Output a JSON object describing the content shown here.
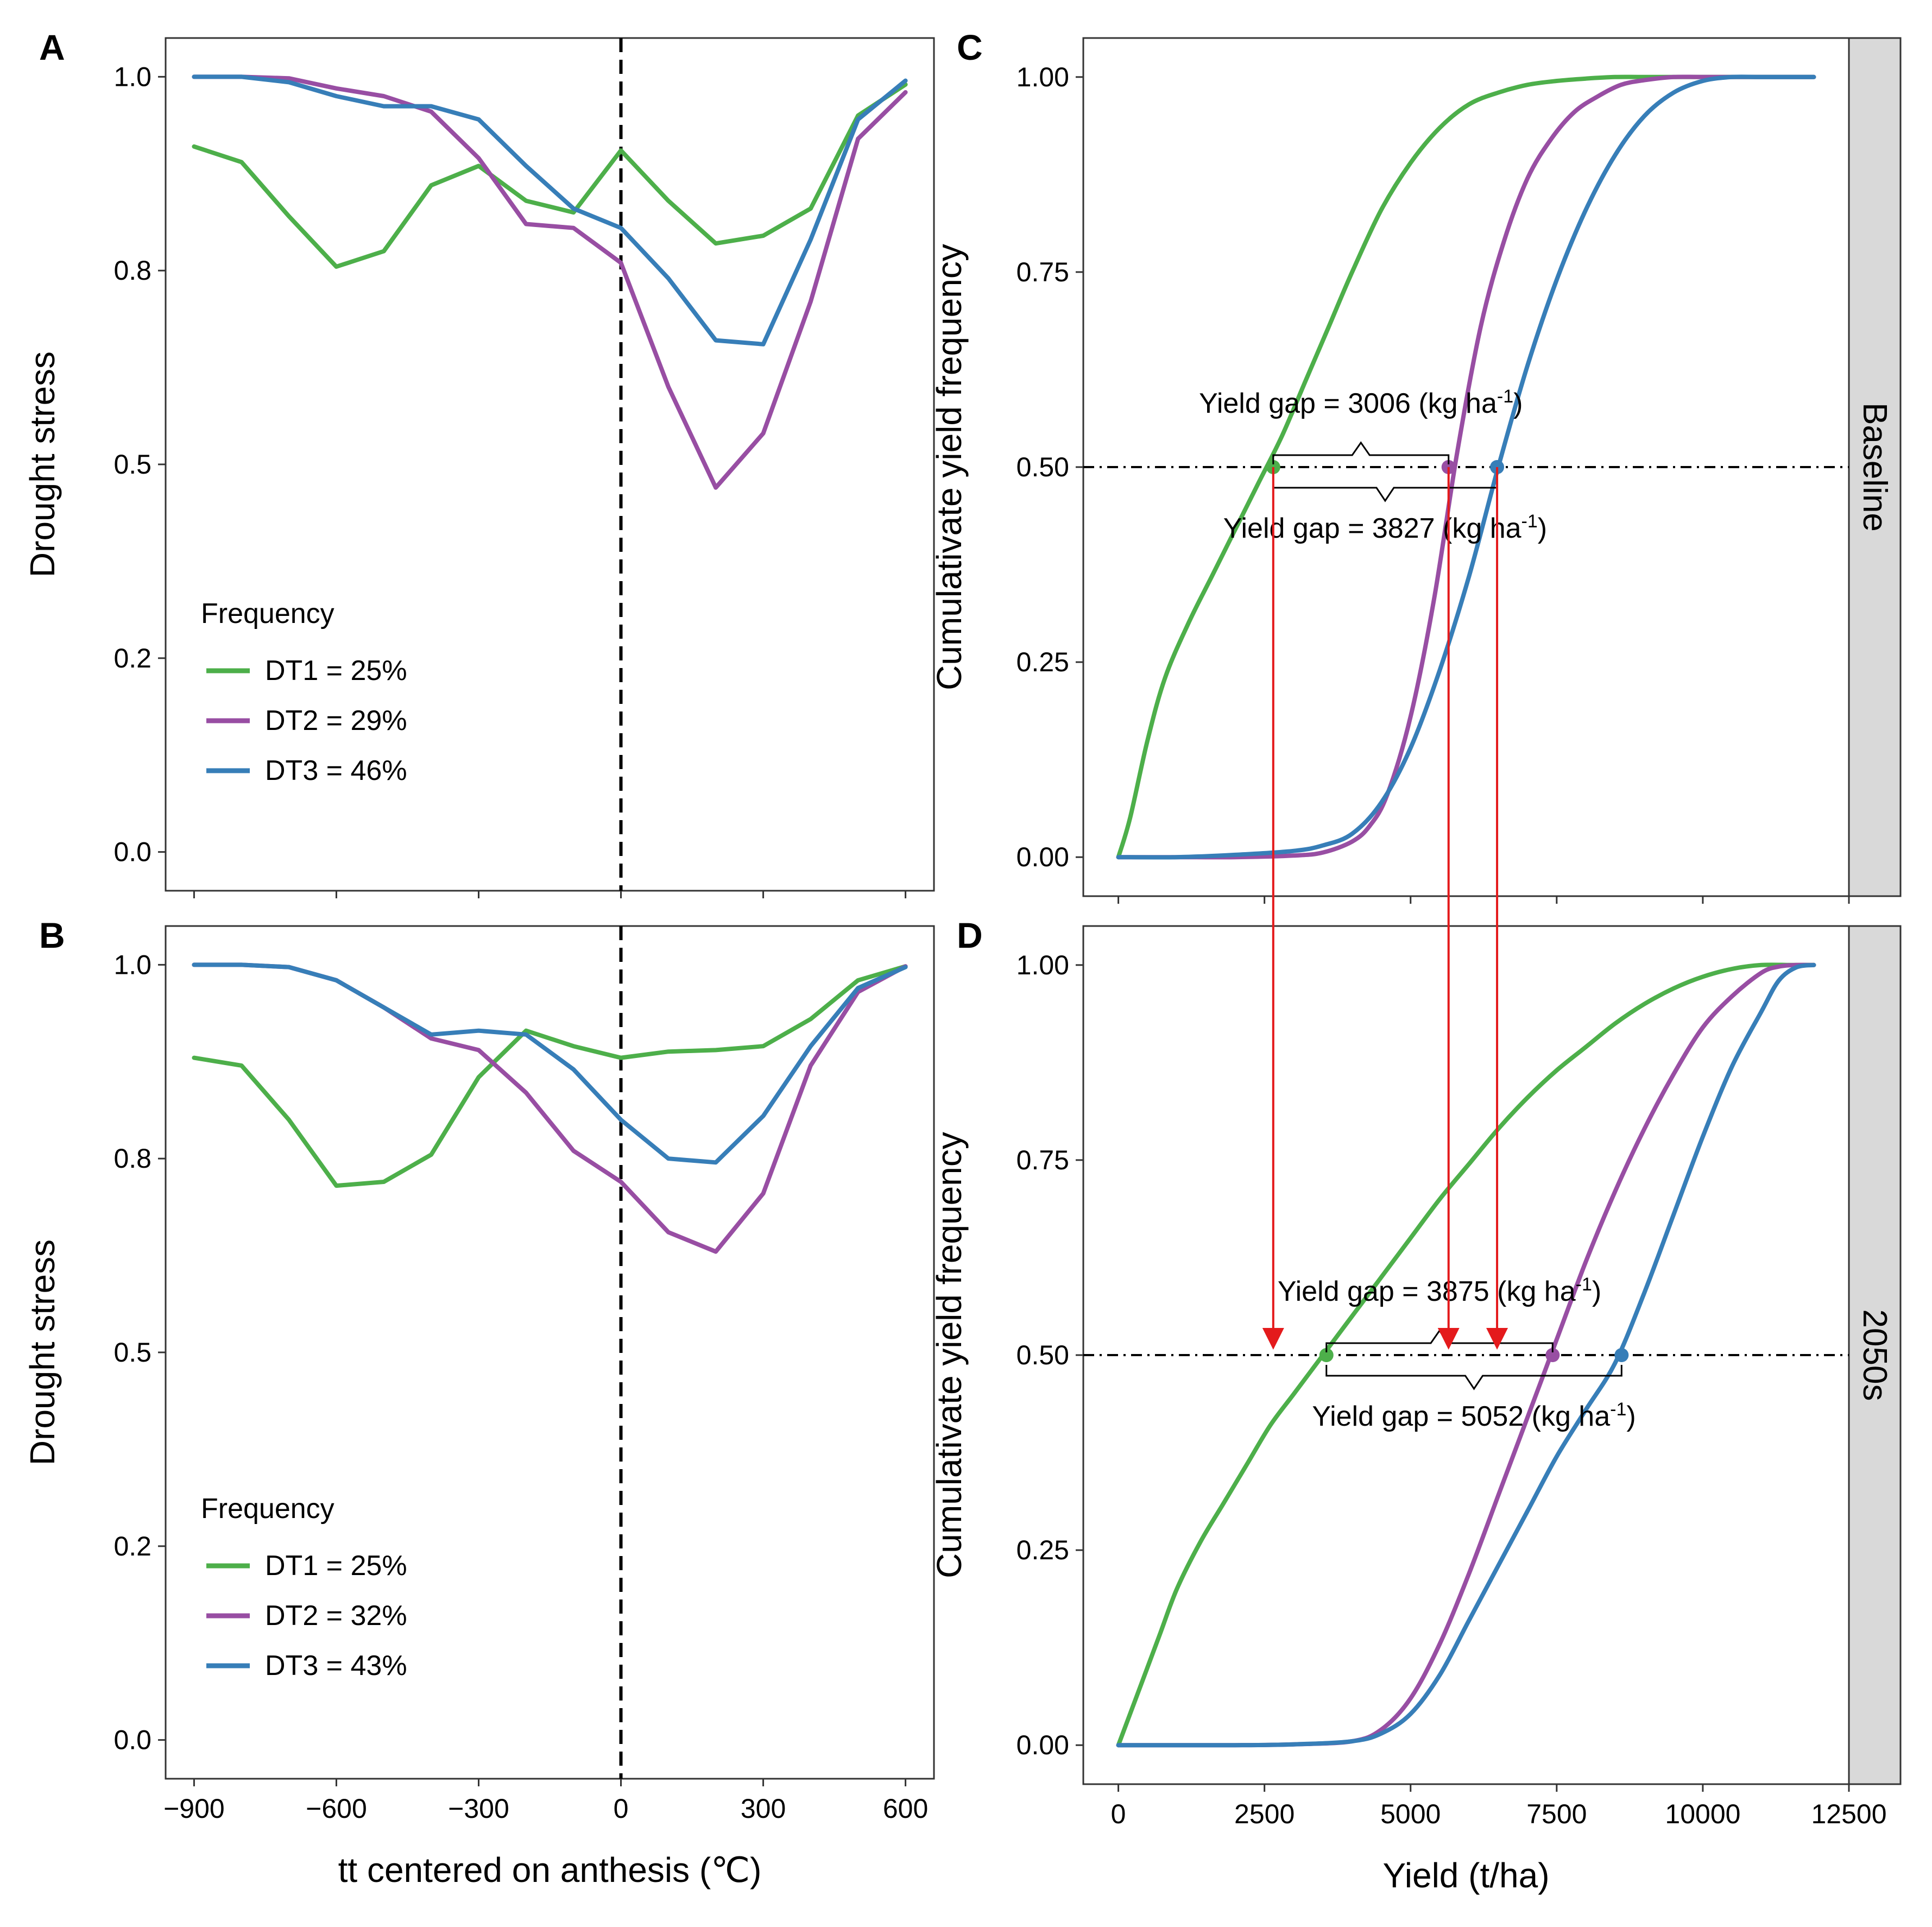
{
  "figure": {
    "colors": {
      "DT1": "#4daf4a",
      "DT2": "#984ea3",
      "DT3": "#377eb8",
      "arrow": "#e41a1c",
      "strip_fill": "#d9d9d9"
    }
  },
  "chart_data": [
    {
      "id": "A",
      "panel_letter": "A",
      "type": "line",
      "ylabel": "Drought  stress",
      "xlabel": "",
      "xlim": [
        -960,
        660
      ],
      "ylim": [
        -0.05,
        1.05
      ],
      "x_ticks": [
        -900,
        -600,
        -300,
        0,
        300,
        600
      ],
      "x_tick_labels": [
        "",
        "",
        "",
        "",
        "",
        ""
      ],
      "y_ticks": [
        0.0,
        0.25,
        0.5,
        0.75,
        1.0
      ],
      "y_tick_labels": [
        "0.0",
        "0.2",
        "0.5",
        "0.8",
        "1.0"
      ],
      "vline_x": 0,
      "legend": {
        "title": "Frequency",
        "position": "bottom-left"
      },
      "x": [
        -900,
        -800,
        -700,
        -600,
        -500,
        -400,
        -300,
        -200,
        -100,
        0,
        100,
        200,
        300,
        400,
        500,
        600
      ],
      "series": [
        {
          "name": "DT1",
          "label": "DT1 = 25%",
          "values": [
            0.91,
            0.89,
            0.82,
            0.755,
            0.775,
            0.86,
            0.885,
            0.84,
            0.825,
            0.905,
            0.84,
            0.785,
            0.795,
            0.83,
            0.95,
            0.99
          ]
        },
        {
          "name": "DT2",
          "label": "DT2 = 29%",
          "values": [
            1.0,
            1.0,
            0.998,
            0.985,
            0.975,
            0.955,
            0.895,
            0.81,
            0.805,
            0.76,
            0.6,
            0.47,
            0.54,
            0.71,
            0.92,
            0.98
          ]
        },
        {
          "name": "DT3",
          "label": "DT3 = 46%",
          "values": [
            1.0,
            1.0,
            0.993,
            0.975,
            0.962,
            0.962,
            0.945,
            0.885,
            0.83,
            0.805,
            0.74,
            0.66,
            0.655,
            0.79,
            0.945,
            0.995
          ]
        }
      ]
    },
    {
      "id": "B",
      "panel_letter": "B",
      "type": "line",
      "ylabel": "Drought stress",
      "xlabel": "tt centered on anthesis (℃)",
      "xlim": [
        -960,
        660
      ],
      "ylim": [
        -0.05,
        1.05
      ],
      "x_ticks": [
        -900,
        -600,
        -300,
        0,
        300,
        600
      ],
      "x_tick_labels": [
        "−900",
        "−600",
        "−300",
        "0",
        "300",
        "600"
      ],
      "y_ticks": [
        0.0,
        0.25,
        0.5,
        0.75,
        1.0
      ],
      "y_tick_labels": [
        "0.0",
        "0.2",
        "0.5",
        "0.8",
        "1.0"
      ],
      "vline_x": 0,
      "legend": {
        "title": "Frequency",
        "position": "bottom-left"
      },
      "x": [
        -900,
        -800,
        -700,
        -600,
        -500,
        -400,
        -300,
        -200,
        -100,
        0,
        100,
        200,
        300,
        400,
        500,
        600
      ],
      "series": [
        {
          "name": "DT1",
          "label": "DT1 = 25%",
          "values": [
            0.88,
            0.87,
            0.8,
            0.715,
            0.72,
            0.755,
            0.855,
            0.915,
            0.895,
            0.88,
            0.888,
            0.89,
            0.895,
            0.93,
            0.98,
            0.998
          ]
        },
        {
          "name": "DT2",
          "label": "DT2 = 32%",
          "values": [
            1.0,
            1.0,
            0.997,
            0.98,
            0.945,
            0.905,
            0.89,
            0.835,
            0.76,
            0.72,
            0.655,
            0.63,
            0.705,
            0.87,
            0.965,
            0.998
          ]
        },
        {
          "name": "DT3",
          "label": "DT3 = 43%",
          "values": [
            1.0,
            1.0,
            0.997,
            0.98,
            0.945,
            0.91,
            0.915,
            0.91,
            0.865,
            0.8,
            0.75,
            0.745,
            0.805,
            0.895,
            0.97,
            0.997
          ]
        }
      ]
    },
    {
      "id": "C",
      "panel_letter": "C",
      "type": "line",
      "strip_label": "Baseline",
      "ylabel": "Cumulativate yield frequency",
      "xlabel": "",
      "xlim": [
        -600,
        12500
      ],
      "ylim": [
        -0.05,
        1.05
      ],
      "x_ticks": [
        0,
        2500,
        5000,
        7500,
        10000,
        12500
      ],
      "x_tick_labels": [
        "",
        "",
        "",
        "",
        "",
        ""
      ],
      "y_ticks": [
        0.0,
        0.25,
        0.5,
        0.75,
        1.0
      ],
      "y_tick_labels": [
        "0.00",
        "0.25",
        "0.50",
        "0.75",
        "1.00"
      ],
      "hline_y": 0.5,
      "median_points": [
        {
          "series": "DT1",
          "x": 2650,
          "y": 0.5
        },
        {
          "series": "DT2",
          "x": 5650,
          "y": 0.5
        },
        {
          "series": "DT3",
          "x": 6480,
          "y": 0.5
        }
      ],
      "annotations": [
        {
          "text": "Yield gap = 3006 (kg ha",
          "sup": "-1",
          "close": ")",
          "brace_from": 2650,
          "brace_to": 5650,
          "side": "above"
        },
        {
          "text": "Yield gap = 3827 (kg ha",
          "sup": "-1",
          "close": ")",
          "brace_from": 2650,
          "brace_to": 6480,
          "side": "below"
        }
      ],
      "series": [
        {
          "name": "DT1",
          "x": [
            0,
            200,
            500,
            800,
            1200,
            1600,
            2000,
            2400,
            2800,
            3200,
            3600,
            4000,
            4500,
            5000,
            5500,
            6000,
            6500,
            7000,
            7500,
            8000,
            8500,
            9000,
            10000,
            11000,
            11900
          ],
          "values": [
            0.0,
            0.05,
            0.15,
            0.23,
            0.3,
            0.36,
            0.42,
            0.48,
            0.54,
            0.61,
            0.68,
            0.75,
            0.83,
            0.89,
            0.935,
            0.965,
            0.98,
            0.99,
            0.995,
            0.998,
            1.0,
            1.0,
            1.0,
            1.0,
            1.0
          ]
        },
        {
          "name": "DT2",
          "x": [
            0,
            1000,
            2000,
            3000,
            3500,
            4000,
            4300,
            4600,
            5000,
            5400,
            5800,
            6200,
            6600,
            7000,
            7400,
            7800,
            8200,
            8600,
            9000,
            9500,
            10000,
            11000,
            11900
          ],
          "values": [
            0.0,
            0.0,
            0.0,
            0.002,
            0.006,
            0.02,
            0.04,
            0.08,
            0.18,
            0.33,
            0.52,
            0.68,
            0.79,
            0.87,
            0.92,
            0.955,
            0.975,
            0.99,
            0.996,
            1.0,
            1.0,
            1.0,
            1.0
          ]
        },
        {
          "name": "DT3",
          "x": [
            0,
            1000,
            2000,
            3000,
            3500,
            4000,
            4500,
            5000,
            5500,
            6000,
            6500,
            7000,
            7500,
            8000,
            8500,
            9000,
            9500,
            10000,
            10500,
            11000,
            11900
          ],
          "values": [
            0.0,
            0.0,
            0.003,
            0.008,
            0.015,
            0.03,
            0.07,
            0.14,
            0.24,
            0.36,
            0.5,
            0.63,
            0.74,
            0.83,
            0.9,
            0.95,
            0.98,
            0.995,
            1.0,
            1.0,
            1.0
          ]
        }
      ]
    },
    {
      "id": "D",
      "panel_letter": "D",
      "type": "line",
      "strip_label": "2050s",
      "ylabel": "Cumulativate yield frequency",
      "xlabel": "Yield (t/ha)",
      "xlim": [
        -600,
        12500
      ],
      "ylim": [
        -0.05,
        1.05
      ],
      "x_ticks": [
        0,
        2500,
        5000,
        7500,
        10000,
        12500
      ],
      "x_tick_labels": [
        "0",
        "2500",
        "5000",
        "7500",
        "10000",
        "12500"
      ],
      "y_ticks": [
        0.0,
        0.25,
        0.5,
        0.75,
        1.0
      ],
      "y_tick_labels": [
        "0.00",
        "0.25",
        "0.50",
        "0.75",
        "1.00"
      ],
      "hline_y": 0.5,
      "median_points": [
        {
          "series": "DT1",
          "x": 3560,
          "y": 0.5
        },
        {
          "series": "DT2",
          "x": 7430,
          "y": 0.5
        },
        {
          "series": "DT3",
          "x": 8610,
          "y": 0.5
        }
      ],
      "annotations": [
        {
          "text": "Yield gap = 3875 (kg ha",
          "sup": "-1",
          "close": ")",
          "brace_from": 3560,
          "brace_to": 7430,
          "side": "above"
        },
        {
          "text": "Yield gap = 5052 (kg ha",
          "sup": "-1",
          "close": ")",
          "brace_from": 3560,
          "brace_to": 8610,
          "side": "below"
        }
      ],
      "arrows_from_C": [
        2650,
        5650,
        6480
      ],
      "series": [
        {
          "name": "DT1",
          "x": [
            0,
            300,
            700,
            1000,
            1400,
            1800,
            2200,
            2600,
            3000,
            3500,
            4000,
            4500,
            5000,
            5500,
            6000,
            6500,
            7000,
            7500,
            8000,
            8500,
            9000,
            9500,
            10000,
            10500,
            11000,
            11500,
            11900
          ],
          "values": [
            0.0,
            0.06,
            0.14,
            0.2,
            0.26,
            0.31,
            0.36,
            0.41,
            0.45,
            0.5,
            0.55,
            0.6,
            0.65,
            0.7,
            0.745,
            0.79,
            0.83,
            0.865,
            0.895,
            0.925,
            0.95,
            0.97,
            0.985,
            0.995,
            1.0,
            1.0,
            1.0
          ]
        },
        {
          "name": "DT2",
          "x": [
            0,
            2000,
            3000,
            4000,
            4500,
            5000,
            5500,
            6000,
            6500,
            7000,
            7500,
            8000,
            8500,
            9000,
            9500,
            10000,
            10500,
            11000,
            11300,
            11600,
            11900
          ],
          "values": [
            0.0,
            0.0,
            0.001,
            0.005,
            0.02,
            0.06,
            0.13,
            0.22,
            0.32,
            0.42,
            0.52,
            0.62,
            0.71,
            0.79,
            0.86,
            0.92,
            0.96,
            0.99,
            0.998,
            1.0,
            1.0
          ]
        },
        {
          "name": "DT3",
          "x": [
            0,
            2000,
            3000,
            4000,
            4500,
            5000,
            5500,
            6000,
            6500,
            7000,
            7500,
            8000,
            8500,
            9000,
            9500,
            10000,
            10500,
            11000,
            11300,
            11600,
            11900
          ],
          "values": [
            0.0,
            0.0,
            0.001,
            0.005,
            0.015,
            0.04,
            0.09,
            0.16,
            0.23,
            0.3,
            0.37,
            0.43,
            0.49,
            0.58,
            0.68,
            0.78,
            0.87,
            0.94,
            0.98,
            0.997,
            1.0
          ]
        }
      ]
    }
  ]
}
